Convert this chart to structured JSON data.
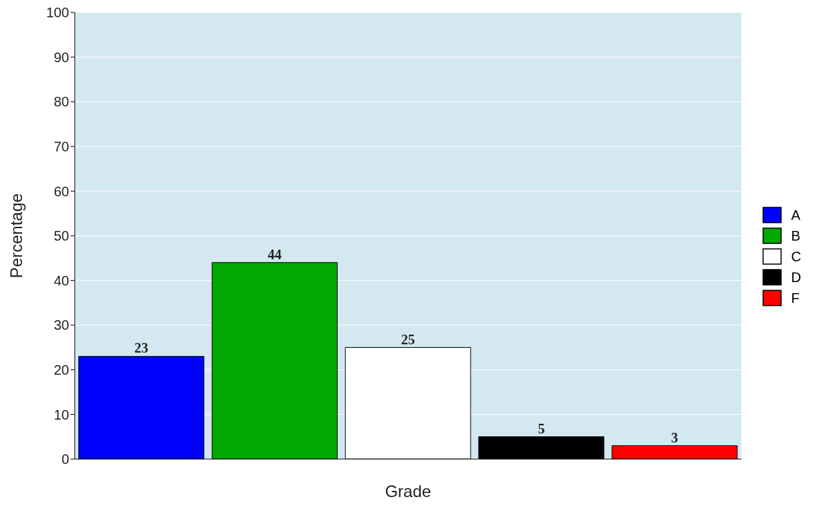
{
  "chart_data": {
    "type": "bar",
    "xlabel": "Grade",
    "ylabel": "Percentage",
    "categories": [
      null,
      null,
      null,
      null,
      null
    ],
    "stacked": true,
    "series": [
      {
        "name": "A",
        "color": "#0000ff",
        "values": [
          23,
          null,
          null,
          null,
          null
        ]
      },
      {
        "name": "B",
        "color": "#00a800",
        "values": [
          null,
          44,
          null,
          null,
          null
        ]
      },
      {
        "name": "C",
        "color": "#ffffff",
        "values": [
          null,
          null,
          25,
          null,
          null
        ]
      },
      {
        "name": "D",
        "color": "#000000",
        "values": [
          null,
          null,
          null,
          5,
          null
        ]
      },
      {
        "name": "F",
        "color": "#ff0000",
        "values": [
          null,
          null,
          null,
          null,
          3
        ]
      }
    ],
    "ylim": [
      0,
      100
    ],
    "yticks": [
      0,
      10,
      20,
      30,
      40,
      50,
      60,
      70,
      80,
      90,
      100
    ],
    "grid": "y",
    "legend": "right",
    "tick_labels": "y",
    "data_labels": true
  }
}
